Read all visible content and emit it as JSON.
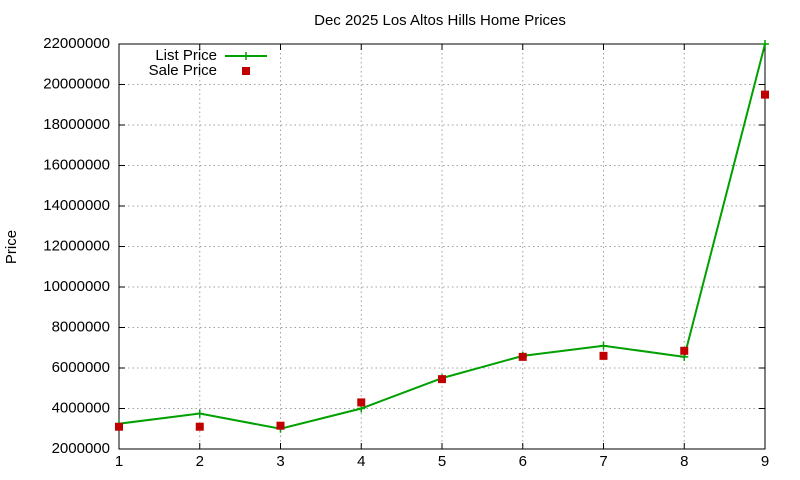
{
  "chart_data": {
    "type": "line",
    "title": "Dec 2025 Los Altos Hills Home Prices",
    "y_label": "Price",
    "x": [
      1,
      2,
      3,
      4,
      5,
      6,
      7,
      8,
      9
    ],
    "series": [
      {
        "name": "List Price",
        "color": "#00a000",
        "style": "linespoints",
        "values": [
          3250000,
          3750000,
          3000000,
          4000000,
          5500000,
          6600000,
          7100000,
          6550000,
          22000000
        ]
      },
      {
        "name": "Sale Price",
        "color": "#c00000",
        "style": "points",
        "values": [
          3100000,
          3100000,
          3150000,
          4300000,
          5450000,
          6550000,
          6600000,
          6850000,
          19500000
        ]
      }
    ],
    "xlim": [
      1,
      9
    ],
    "xticks": [
      1,
      2,
      3,
      4,
      5,
      6,
      7,
      8,
      9
    ],
    "ylim": [
      2000000,
      22000000
    ],
    "yticks": [
      2000000,
      4000000,
      6000000,
      8000000,
      10000000,
      12000000,
      14000000,
      16000000,
      18000000,
      20000000,
      22000000
    ],
    "grid": true,
    "legend": "top-left"
  }
}
